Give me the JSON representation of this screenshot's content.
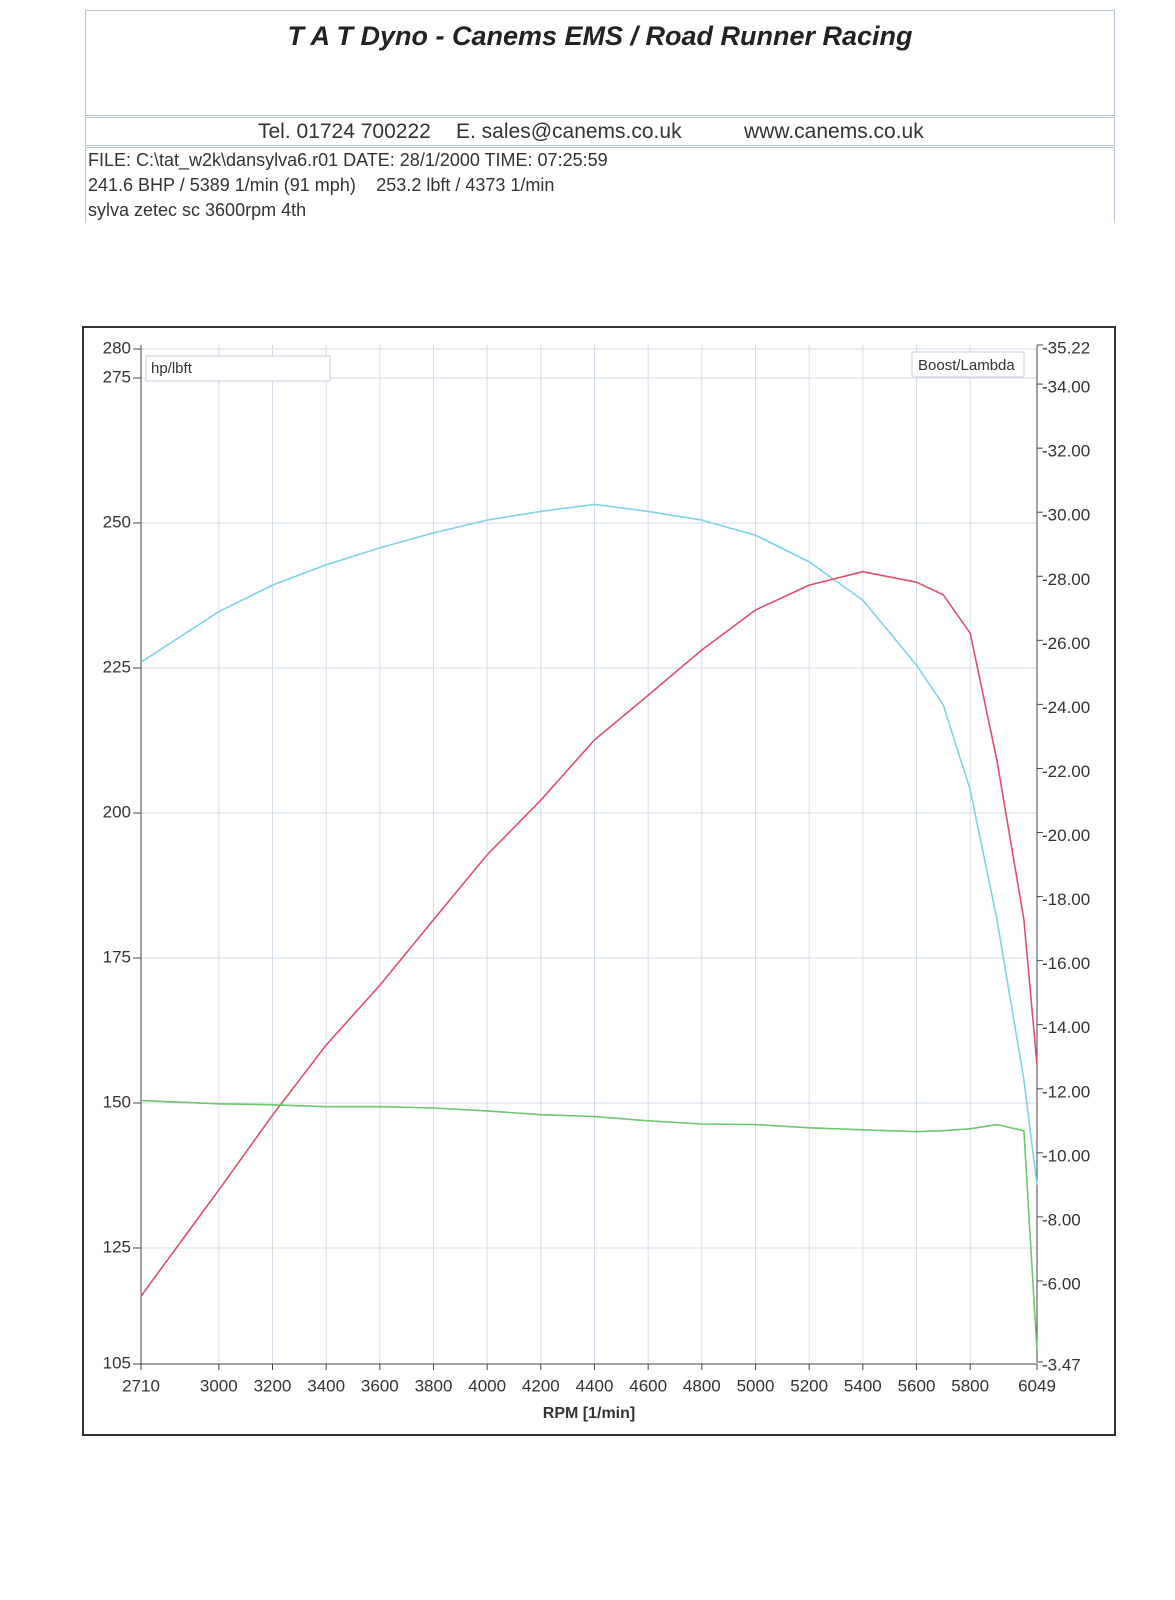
{
  "header": {
    "title": "T A T Dyno - Canems EMS / Road Runner Racing",
    "tel": "Tel. 01724 700222",
    "email": "E. sales@canems.co.uk",
    "web": "www.canems.co.uk",
    "info": [
      "FILE: C:\\tat_w2k\\dansylva6.r01  DATE: 28/1/2000  TIME: 07:25:59",
      "241.6 BHP / 5389 1/min (91 mph)",
      "253.2 lbft / 4373 1/min",
      "sylva zetec sc 3600rpm 4th"
    ]
  },
  "chart_data": {
    "type": "line",
    "xlabel": "RPM  [1/min]",
    "ylabel": "hp/lbft",
    "y2label": "Boost/Lambda",
    "x": [
      2710,
      3000,
      3200,
      3400,
      3600,
      3800,
      4000,
      4200,
      4400,
      4600,
      4800,
      5000,
      5200,
      5400,
      5600,
      5700,
      5800,
      5900,
      6000,
      6049
    ],
    "xlim": [
      2710,
      6049
    ],
    "xticks": [
      2710,
      3000,
      3200,
      3400,
      3600,
      3800,
      4000,
      4200,
      4400,
      4600,
      4800,
      5000,
      5200,
      5400,
      5600,
      5800,
      6049
    ],
    "ylim": [
      105,
      280
    ],
    "yticks": [
      105,
      125,
      150,
      175,
      200,
      225,
      250,
      275,
      280
    ],
    "y2lim": [
      -3.47,
      -35.22
    ],
    "y2ticks": [
      -3.47,
      {
        "value": -6,
        "label": "-6.00"
      },
      {
        "value": -8,
        "label": "-8.00"
      },
      {
        "value": -10,
        "label": "-10.00"
      },
      {
        "value": -12,
        "label": "-12.00"
      },
      {
        "value": -14,
        "label": "-14.00"
      },
      {
        "value": -16,
        "label": "-16.00"
      },
      {
        "value": -18,
        "label": "-18.00"
      },
      {
        "value": -20,
        "label": "-20.00"
      },
      {
        "value": -22,
        "label": "-22.00"
      },
      {
        "value": -24,
        "label": "-24.00"
      },
      {
        "value": -26,
        "label": "-26.00"
      },
      {
        "value": -28,
        "label": "-28.00"
      },
      {
        "value": -30,
        "label": "-30.00"
      },
      {
        "value": -32,
        "label": "-32.00"
      },
      {
        "value": -34,
        "label": "-34.00"
      },
      -35.22
    ],
    "grid": true,
    "series": [
      {
        "color": "#7fd3e4",
        "values": [
          226,
          234.7,
          239.3,
          242.8,
          245.7,
          248.3,
          250.5,
          252,
          253.2,
          252,
          250.5,
          247.9,
          243.3,
          236.7,
          225.5,
          218.6,
          204,
          181.6,
          154,
          135.9
        ]
      },
      {
        "color": "#e0506a",
        "values": [
          116.7,
          135,
          147.9,
          160,
          170.3,
          181.6,
          192.8,
          202.2,
          212.6,
          220.3,
          228.1,
          235,
          239.3,
          241.6,
          239.8,
          237.6,
          231,
          209,
          181.6,
          156.6
        ]
      },
      {
        "color": "#6cc86c",
        "axis": "y2",
        "values": [
          -11.63,
          -11.53,
          -11.5,
          -11.44,
          -11.44,
          -11.4,
          -11.31,
          -11.19,
          -11.13,
          -11,
          -10.9,
          -10.88,
          -10.78,
          -10.72,
          -10.66,
          -10.69,
          -10.75,
          -10.88,
          -10.69,
          -3.81
        ]
      }
    ]
  }
}
